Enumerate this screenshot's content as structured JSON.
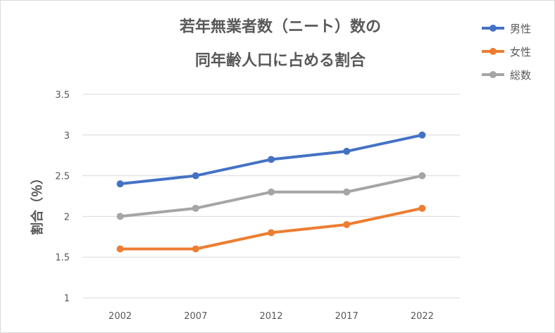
{
  "chart_data": {
    "type": "line",
    "title_lines": [
      "若年無業者数（ニート）数の",
      "同年齢人口に占める割合"
    ],
    "xlabel": "",
    "ylabel": "割合（％）",
    "categories": [
      "2002",
      "2007",
      "2012",
      "2017",
      "2022"
    ],
    "ylim": [
      1,
      3.5
    ],
    "yticks": [
      "1",
      "1.5",
      "2",
      "2.5",
      "3",
      "3.5"
    ],
    "ytick_values": [
      1,
      1.5,
      2,
      2.5,
      3,
      3.5
    ],
    "grid": true,
    "legend_position": "right",
    "series": [
      {
        "name": "男性",
        "color": "#4472c4",
        "values": [
          2.4,
          2.5,
          2.7,
          2.8,
          3.0
        ]
      },
      {
        "name": "女性",
        "color": "#ed7d31",
        "values": [
          1.6,
          1.6,
          1.8,
          1.9,
          2.1
        ]
      },
      {
        "name": "総数",
        "color": "#a5a5a5",
        "values": [
          2.0,
          2.1,
          2.3,
          2.3,
          2.5
        ]
      }
    ]
  }
}
